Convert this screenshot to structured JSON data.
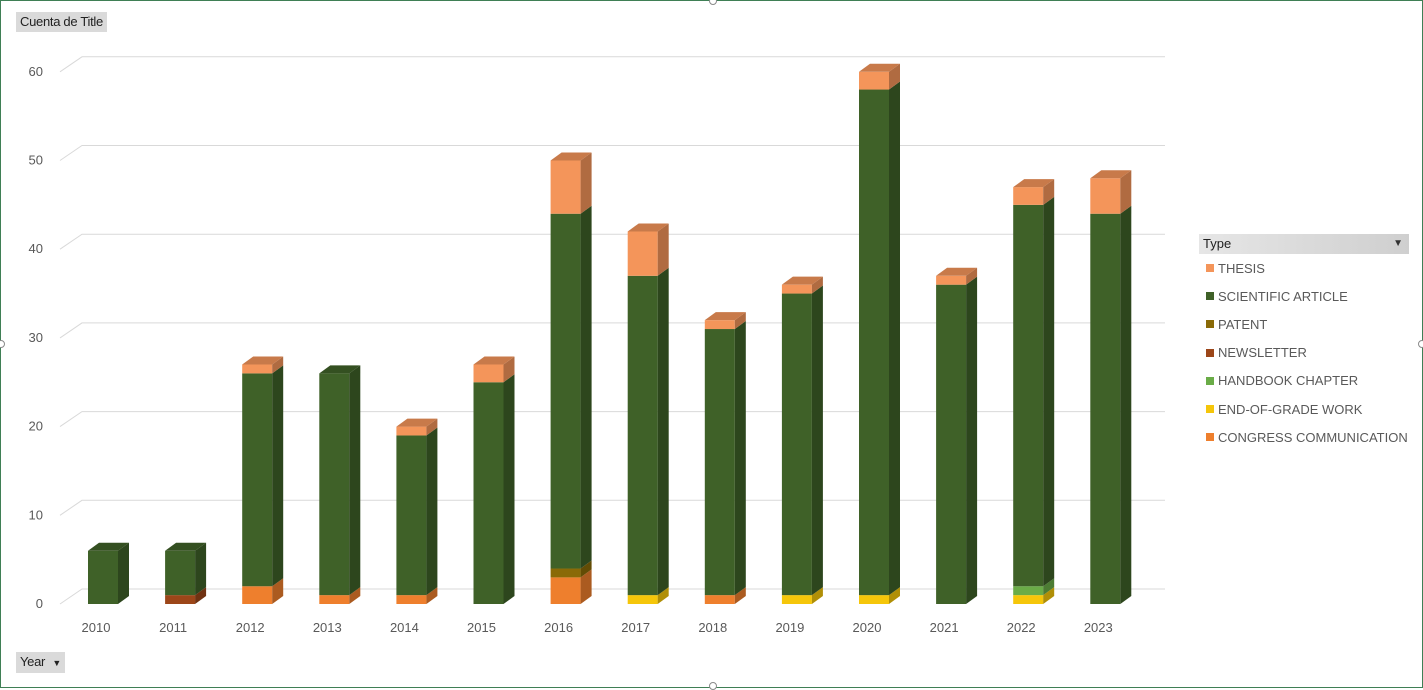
{
  "pivot": {
    "value_field": "Cuenta de Title",
    "axis_field": "Year",
    "axis_arrow": "▼",
    "legend_field": "Type",
    "legend_arrow": "▼"
  },
  "legend": [
    {
      "name": "THESIS",
      "color": "#f4955a"
    },
    {
      "name": "SCIENTIFIC ARTICLE",
      "color": "#3f6128"
    },
    {
      "name": "PATENT",
      "color": "#8a6a07"
    },
    {
      "name": "NEWSLETTER",
      "color": "#9c4619"
    },
    {
      "name": "HANDBOOK CHAPTER",
      "color": "#6aac47"
    },
    {
      "name": "END-OF-GRADE WORK",
      "color": "#f5c60a"
    },
    {
      "name": "CONGRESS COMMUNICATION",
      "color": "#ee7f2d"
    }
  ],
  "chart_data": {
    "type": "bar",
    "stacked": true,
    "three_d": true,
    "categories": [
      "2010",
      "2011",
      "2012",
      "2013",
      "2014",
      "2015",
      "2016",
      "2017",
      "2018",
      "2019",
      "2020",
      "2021",
      "2022",
      "2023"
    ],
    "series": [
      {
        "name": "CONGRESS COMMUNICATION",
        "color": "#ee7f2d",
        "values": [
          0,
          0,
          2,
          1,
          1,
          0,
          3,
          0,
          1,
          0,
          0,
          0,
          0,
          0
        ]
      },
      {
        "name": "END-OF-GRADE WORK",
        "color": "#f5c60a",
        "values": [
          0,
          0,
          0,
          0,
          0,
          0,
          0,
          1,
          0,
          1,
          1,
          0,
          1,
          0
        ]
      },
      {
        "name": "HANDBOOK CHAPTER",
        "color": "#6aac47",
        "values": [
          0,
          0,
          0,
          0,
          0,
          0,
          0,
          0,
          0,
          0,
          0,
          0,
          1,
          0
        ]
      },
      {
        "name": "NEWSLETTER",
        "color": "#9c4619",
        "values": [
          0,
          1,
          0,
          0,
          0,
          0,
          0,
          0,
          0,
          0,
          0,
          0,
          0,
          0
        ]
      },
      {
        "name": "PATENT",
        "color": "#8a6a07",
        "values": [
          0,
          0,
          0,
          0,
          0,
          0,
          1,
          0,
          0,
          0,
          0,
          0,
          0,
          0
        ]
      },
      {
        "name": "SCIENTIFIC ARTICLE",
        "color": "#3f6128",
        "values": [
          6,
          5,
          24,
          25,
          18,
          25,
          40,
          36,
          30,
          34,
          57,
          36,
          43,
          44
        ]
      },
      {
        "name": "THESIS",
        "color": "#f4955a",
        "values": [
          0,
          0,
          1,
          0,
          1,
          2,
          6,
          5,
          1,
          1,
          2,
          1,
          2,
          4
        ]
      }
    ],
    "yticks": [
      "0",
      "10",
      "20",
      "30",
      "40",
      "50",
      "60"
    ],
    "ylim": [
      0,
      60
    ],
    "grid": true,
    "legend_position": "right"
  }
}
